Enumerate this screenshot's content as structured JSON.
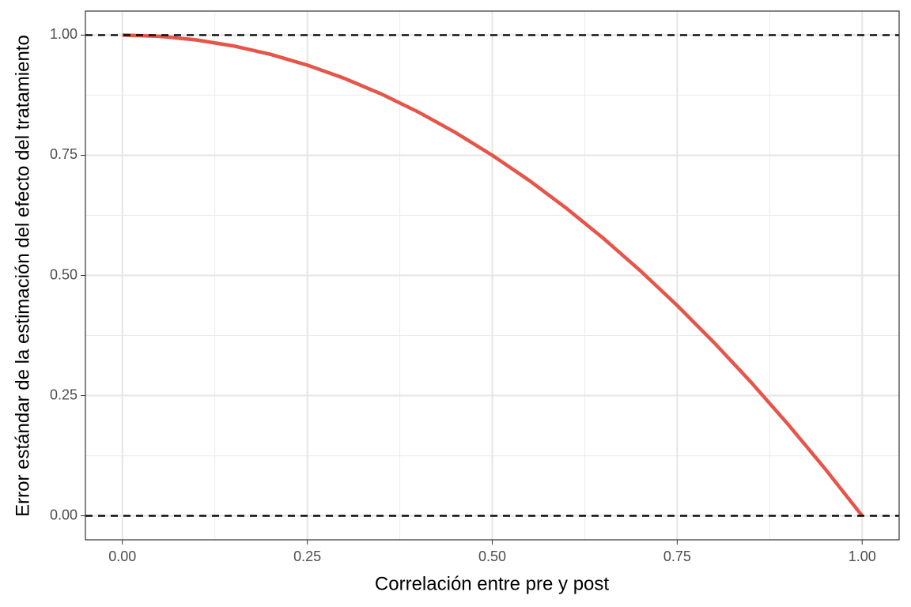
{
  "chart_data": {
    "type": "line",
    "x_label": "Correlación entre pre y post",
    "y_label": "Error estándar de la estimación del efecto del tratamiento",
    "x": [
      0,
      0.05,
      0.1,
      0.15,
      0.2,
      0.25,
      0.3,
      0.35,
      0.4,
      0.45,
      0.5,
      0.55,
      0.6,
      0.65,
      0.7,
      0.75,
      0.8,
      0.85,
      0.9,
      0.95,
      1
    ],
    "series": [
      {
        "color": "#e5554a",
        "values": [
          1,
          0.9975,
          0.99,
          0.9775,
          0.96,
          0.9375,
          0.91,
          0.8775,
          0.84,
          0.7975,
          0.75,
          0.6975,
          0.64,
          0.5775,
          0.51,
          0.4375,
          0.36,
          0.2775,
          0.19,
          0.0975,
          0
        ]
      }
    ],
    "xlim": [
      -0.05,
      1.05
    ],
    "ylim": [
      -0.05,
      1.05
    ],
    "xticks": [
      {
        "value": 0,
        "label": "0.00"
      },
      {
        "value": 0.25,
        "label": "0.25"
      },
      {
        "value": 0.5,
        "label": "0.50"
      },
      {
        "value": 0.75,
        "label": "0.75"
      },
      {
        "value": 1,
        "label": "1.00"
      }
    ],
    "yticks": [
      {
        "value": 0,
        "label": "0.00"
      },
      {
        "value": 0.25,
        "label": "0.25"
      },
      {
        "value": 0.5,
        "label": "0.50"
      },
      {
        "value": 0.75,
        "label": "0.75"
      },
      {
        "value": 1,
        "label": "1.00"
      }
    ],
    "x_minor_ticks": [
      0.125,
      0.375,
      0.625,
      0.875
    ],
    "y_minor_ticks": [
      0.125,
      0.375,
      0.625,
      0.875
    ],
    "hlines": [
      0,
      1
    ],
    "grid": true
  }
}
